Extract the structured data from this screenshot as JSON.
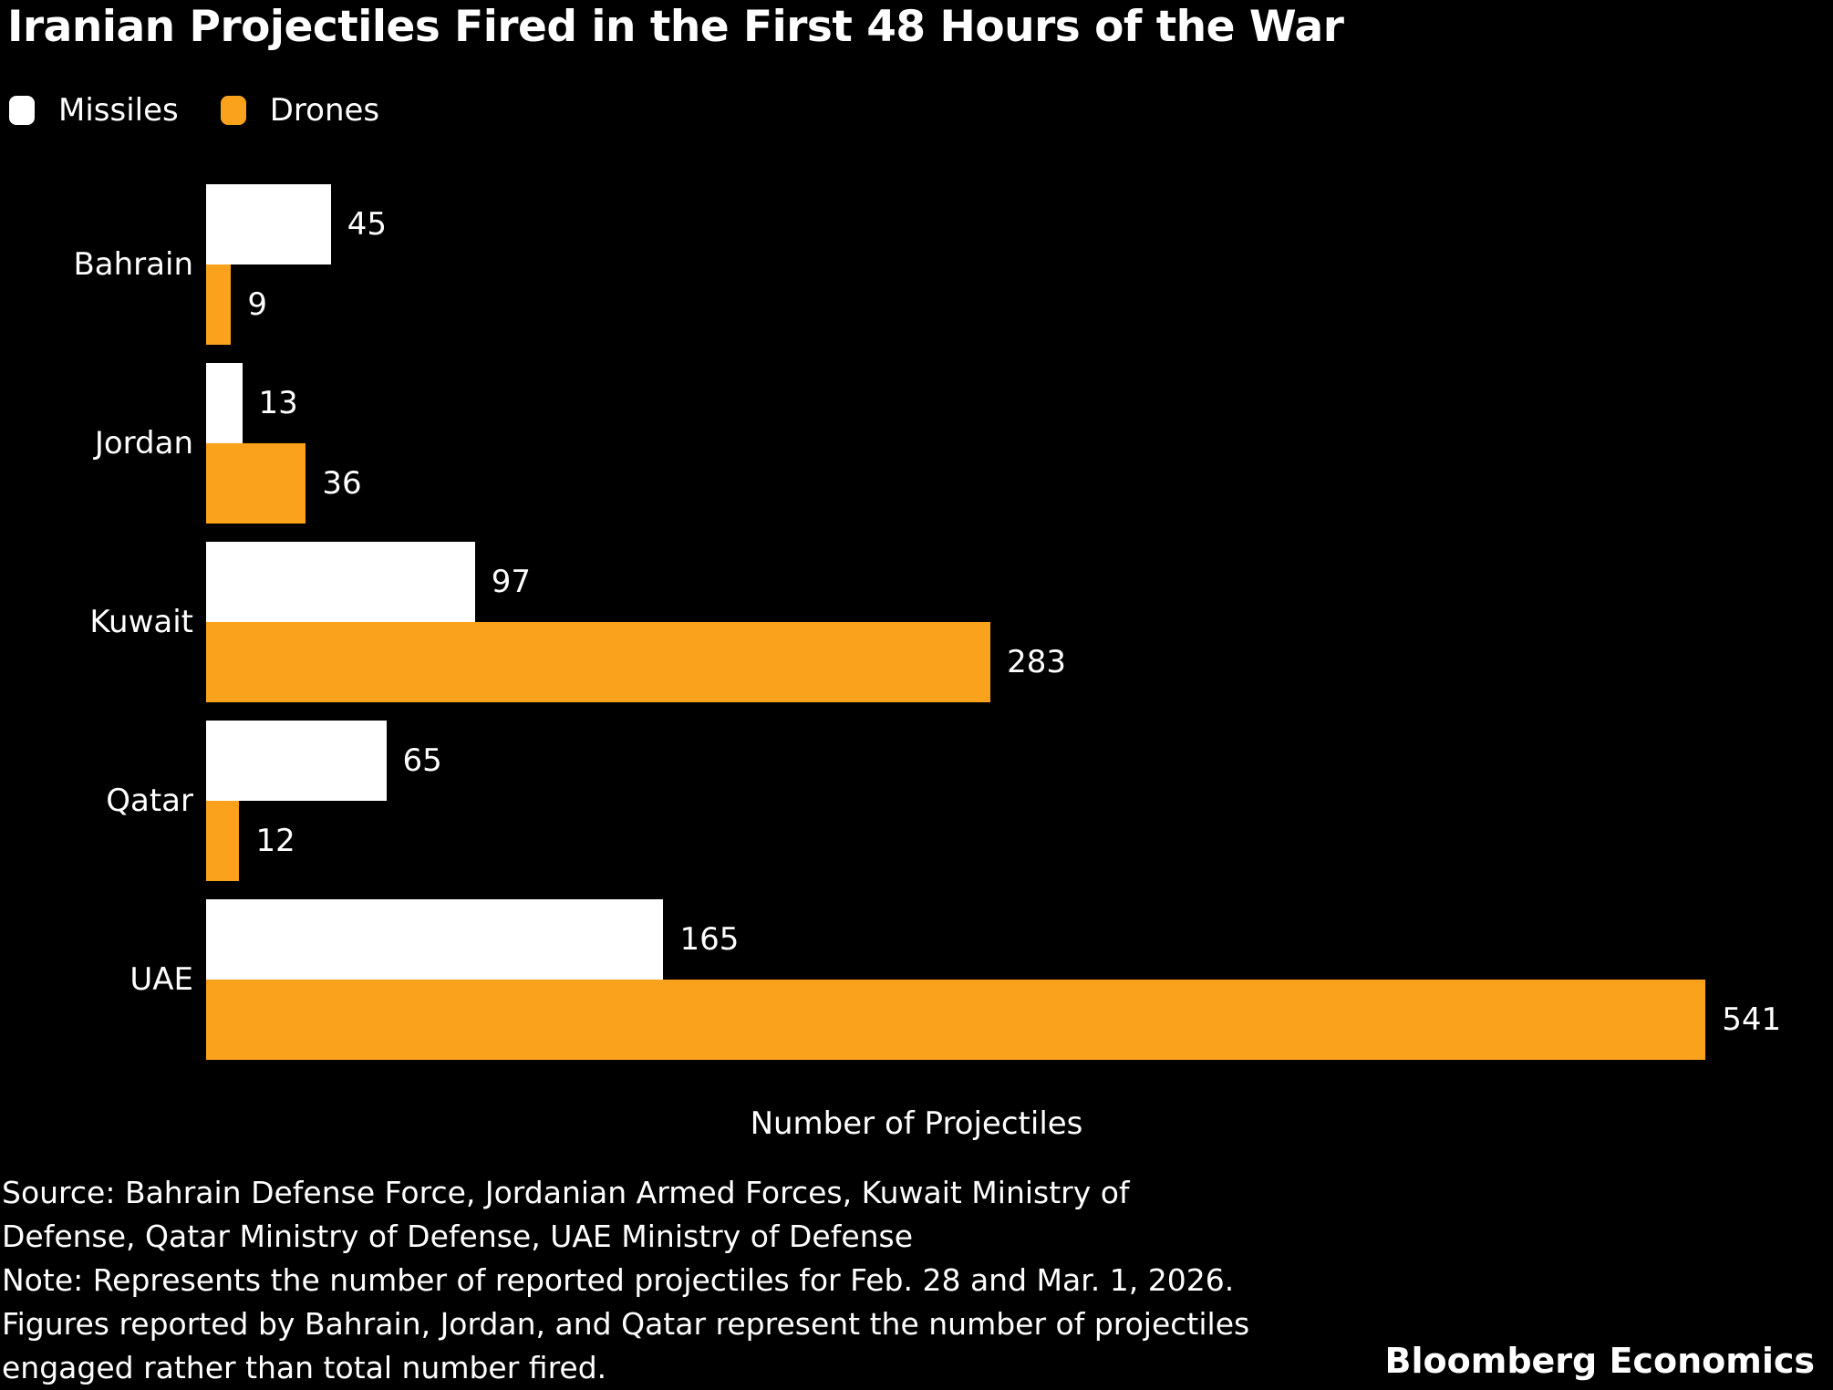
{
  "title": "Iranian Projectiles Fired in the First 48 Hours of the War",
  "colors": {
    "background": "#000000",
    "missiles": "#ffffff",
    "drones": "#faa21b",
    "text": "#ffffff"
  },
  "legend": [
    {
      "label": "Missiles",
      "color": "#ffffff"
    },
    {
      "label": "Drones",
      "color": "#faa21b"
    }
  ],
  "chart_data": {
    "type": "bar",
    "orientation": "horizontal",
    "title": "Iranian Projectiles Fired in the First 48 Hours of the War",
    "categories": [
      "Bahrain",
      "Jordan",
      "Kuwait",
      "Qatar",
      "UAE"
    ],
    "series": [
      {
        "name": "Missiles",
        "color": "#ffffff",
        "values": [
          45,
          13,
          97,
          65,
          165
        ]
      },
      {
        "name": "Drones",
        "color": "#faa21b",
        "values": [
          9,
          36,
          283,
          12,
          541
        ]
      }
    ],
    "xlabel": "Number of Projectiles",
    "ylabel": "",
    "xlim": [
      0,
      587
    ],
    "grid": false,
    "legend_position": "top-left",
    "value_labels": true
  },
  "footer": {
    "lines": [
      "Source: Bahrain Defense Force, Jordanian Armed Forces, Kuwait Ministry of",
      "Defense, Qatar Ministry of Defense, UAE Ministry of Defense",
      "Note: Represents the number of reported projectiles for Feb. 28 and Mar. 1, 2026.",
      "Figures reported by Bahrain, Jordan, and Qatar represent the number of projectiles",
      "engaged rather than total number fired."
    ],
    "branding": "Bloomberg Economics"
  }
}
